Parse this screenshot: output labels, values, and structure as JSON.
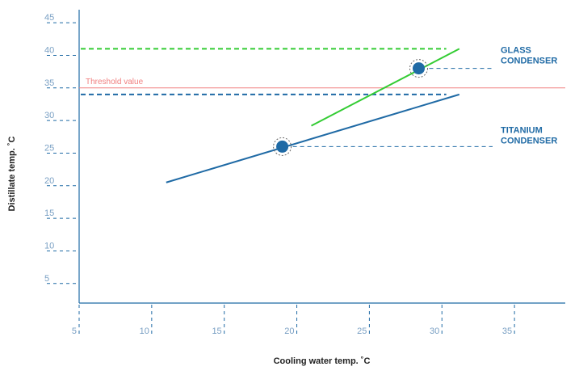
{
  "chart_data": {
    "type": "line",
    "xlabel": "Cooling water temp. ˚C",
    "ylabel": "Distillate temp. ˚C",
    "xlim": [
      5,
      38.5
    ],
    "ylim": [
      2,
      47
    ],
    "x_ticks": [
      5,
      10,
      15,
      20,
      25,
      30,
      35
    ],
    "x_tick_labels": [
      "5",
      "10",
      "15",
      "20",
      "25",
      "30",
      "35"
    ],
    "y_ticks": [
      5,
      10,
      15,
      20,
      25,
      30,
      35,
      40,
      45
    ],
    "y_tick_labels": [
      "5",
      "10",
      "15",
      "20",
      "25",
      "30",
      "35",
      "40",
      "45"
    ],
    "threshold": {
      "label": "Threshold value",
      "y": 35,
      "color": "#f08080"
    },
    "series": [
      {
        "name": "TITANIUM CONDENSER",
        "color": "#1f6aa5",
        "x": [
          11,
          31.2
        ],
        "y": [
          20.5,
          34
        ],
        "reference_y": 34,
        "highlight_point": {
          "x": 19,
          "y": 26
        }
      },
      {
        "name": "GLASS CONDENSER",
        "color": "#33cc33",
        "x": [
          21,
          31.2
        ],
        "y": [
          29.2,
          41
        ],
        "reference_y": 41,
        "highlight_point": {
          "x": 28.4,
          "y": 38
        }
      }
    ],
    "colors": {
      "axis": "#1f6aa5",
      "tick_label": "#7aa0c4",
      "label_text": "#1f6aa5"
    }
  }
}
